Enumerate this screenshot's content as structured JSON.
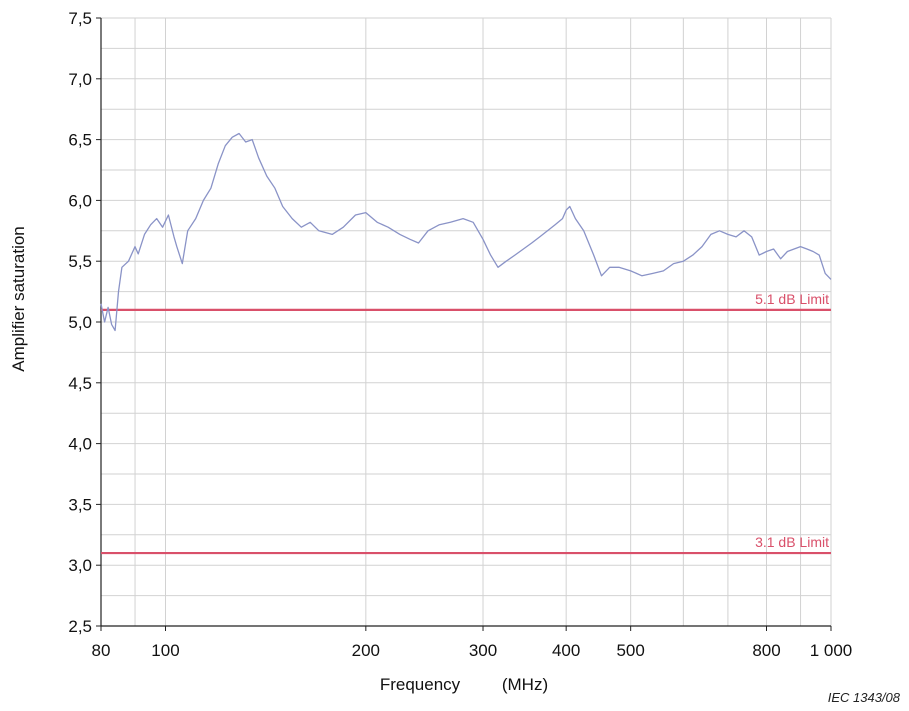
{
  "chart_data": {
    "type": "line",
    "xlabel": "Frequency",
    "xunit": "(MHz)",
    "ylabel": "Amplifier saturation",
    "xscale": "log",
    "xlim": [
      80,
      1000
    ],
    "ylim": [
      2.5,
      7.5
    ],
    "grid": true,
    "x_ticks": [
      {
        "value": 80,
        "label": "80"
      },
      {
        "value": 100,
        "label": "100"
      },
      {
        "value": 200,
        "label": "200"
      },
      {
        "value": 300,
        "label": "300"
      },
      {
        "value": 400,
        "label": "400"
      },
      {
        "value": 500,
        "label": "500"
      },
      {
        "value": 800,
        "label": "800"
      },
      {
        "value": 1000,
        "label": "1 000"
      }
    ],
    "y_ticks": [
      {
        "value": 2.5,
        "label": "2,5"
      },
      {
        "value": 3.0,
        "label": "3,0"
      },
      {
        "value": 3.5,
        "label": "3,5"
      },
      {
        "value": 4.0,
        "label": "4,0"
      },
      {
        "value": 4.5,
        "label": "4,5"
      },
      {
        "value": 5.0,
        "label": "5,0"
      },
      {
        "value": 5.5,
        "label": "5,5"
      },
      {
        "value": 6.0,
        "label": "6,0"
      },
      {
        "value": 6.5,
        "label": "6,5"
      },
      {
        "value": 7.0,
        "label": "7,0"
      },
      {
        "value": 7.5,
        "label": "7,5"
      }
    ],
    "limits": [
      {
        "label": "5.1 dB Limit",
        "value": 5.1,
        "color": "#d9506a"
      },
      {
        "label": "3.1 dB Limit",
        "value": 3.1,
        "color": "#d9506a"
      }
    ],
    "series": [
      {
        "color": "#8a93c7",
        "points": [
          [
            80,
            5.15
          ],
          [
            81,
            5.0
          ],
          [
            82,
            5.12
          ],
          [
            83,
            4.98
          ],
          [
            84,
            4.93
          ],
          [
            85,
            5.25
          ],
          [
            86,
            5.45
          ],
          [
            88,
            5.5
          ],
          [
            90,
            5.62
          ],
          [
            91,
            5.56
          ],
          [
            93,
            5.72
          ],
          [
            95,
            5.8
          ],
          [
            97,
            5.85
          ],
          [
            99,
            5.78
          ],
          [
            101,
            5.88
          ],
          [
            103,
            5.7
          ],
          [
            104,
            5.62
          ],
          [
            106,
            5.48
          ],
          [
            108,
            5.75
          ],
          [
            111,
            5.85
          ],
          [
            114,
            6.0
          ],
          [
            117,
            6.1
          ],
          [
            120,
            6.3
          ],
          [
            123,
            6.45
          ],
          [
            126,
            6.52
          ],
          [
            129,
            6.55
          ],
          [
            132,
            6.48
          ],
          [
            135,
            6.5
          ],
          [
            138,
            6.35
          ],
          [
            142,
            6.2
          ],
          [
            146,
            6.1
          ],
          [
            150,
            5.95
          ],
          [
            155,
            5.85
          ],
          [
            160,
            5.78
          ],
          [
            165,
            5.82
          ],
          [
            170,
            5.75
          ],
          [
            178,
            5.72
          ],
          [
            185,
            5.78
          ],
          [
            193,
            5.88
          ],
          [
            200,
            5.9
          ],
          [
            208,
            5.82
          ],
          [
            216,
            5.78
          ],
          [
            225,
            5.72
          ],
          [
            233,
            5.68
          ],
          [
            240,
            5.65
          ],
          [
            248,
            5.75
          ],
          [
            258,
            5.8
          ],
          [
            268,
            5.82
          ],
          [
            280,
            5.85
          ],
          [
            290,
            5.82
          ],
          [
            300,
            5.68
          ],
          [
            308,
            5.55
          ],
          [
            316,
            5.45
          ],
          [
            325,
            5.5
          ],
          [
            335,
            5.55
          ],
          [
            345,
            5.6
          ],
          [
            355,
            5.65
          ],
          [
            365,
            5.7
          ],
          [
            375,
            5.75
          ],
          [
            385,
            5.8
          ],
          [
            395,
            5.85
          ],
          [
            400,
            5.92
          ],
          [
            405,
            5.95
          ],
          [
            413,
            5.85
          ],
          [
            425,
            5.75
          ],
          [
            440,
            5.55
          ],
          [
            452,
            5.38
          ],
          [
            465,
            5.45
          ],
          [
            480,
            5.45
          ],
          [
            500,
            5.42
          ],
          [
            520,
            5.38
          ],
          [
            540,
            5.4
          ],
          [
            560,
            5.42
          ],
          [
            580,
            5.48
          ],
          [
            600,
            5.5
          ],
          [
            620,
            5.55
          ],
          [
            640,
            5.62
          ],
          [
            660,
            5.72
          ],
          [
            680,
            5.75
          ],
          [
            700,
            5.72
          ],
          [
            720,
            5.7
          ],
          [
            740,
            5.75
          ],
          [
            760,
            5.7
          ],
          [
            780,
            5.55
          ],
          [
            800,
            5.58
          ],
          [
            820,
            5.6
          ],
          [
            840,
            5.52
          ],
          [
            860,
            5.58
          ],
          [
            880,
            5.6
          ],
          [
            900,
            5.62
          ],
          [
            920,
            5.6
          ],
          [
            940,
            5.58
          ],
          [
            960,
            5.55
          ],
          [
            980,
            5.4
          ],
          [
            1000,
            5.35
          ]
        ]
      }
    ]
  },
  "credit": "IEC   1343/08"
}
